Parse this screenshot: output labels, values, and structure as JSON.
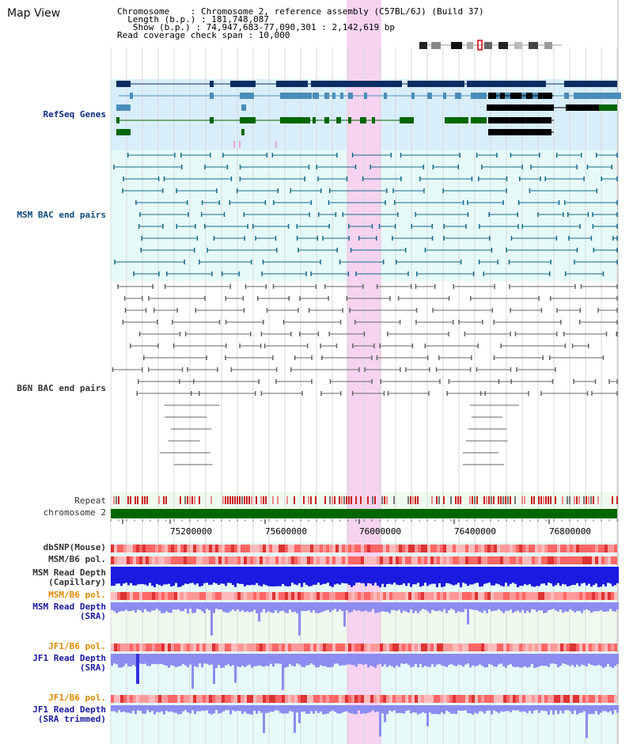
{
  "view": {
    "title": "Map View",
    "chromosome_line": "Chromosome    : Chromosome 2, reference assembly (C57BL/6J) (Build 37)",
    "length_line": "  Length (b.p.) : 181,748,087",
    "show_line": "   Show (b.p.) : 74,947,683-77,090,301 : 2,142,619 bp",
    "coverage_line": "Read coverage check span : 10,000"
  },
  "tracks": {
    "refseq": "RefSeq Genes",
    "msm_bac": "MSM BAC end pairs",
    "b6n_bac": "B6N BAC end pairs",
    "repeat": "Repeat",
    "chromosome": "chromosome 2",
    "dbsnp": "dbSNP(Mouse)",
    "msm_b6_pol": "MSM/B6 pol.",
    "msm_depth_cap": "MSM Read Depth\n(Capillary)",
    "msm_b6_pol_2": "MSM/B6 pol.",
    "msm_depth_sra": "MSM Read Depth\n(SRA)",
    "jf1_b6_pol": "JF1/B6 pol.",
    "jf1_depth_sra": "JF1 Read Depth\n(SRA)",
    "jf1_b6_pol_2": "JF1/B6 pol.",
    "jf1_depth_trim": "JF1 Read Depth\n(SRA trimmed)"
  },
  "axis": {
    "ticks": [
      "75200000",
      "75600000",
      "76000000",
      "76400000",
      "76800000"
    ]
  },
  "colors": {
    "refseq_bg": "#d9eefb",
    "bac_bg": "#e6fafa",
    "highlight": "#f7d3f1",
    "refseq_navy": "#0b2d63",
    "refseq_steel": "#4a8db8",
    "refseq_green": "#006600",
    "msm_teal": "#176b8a",
    "b6n_gray": "#666666",
    "chrom_green": "#006600",
    "depth_blue": "#1a1ae0",
    "sra_blue": "#8c8cf0"
  }
}
